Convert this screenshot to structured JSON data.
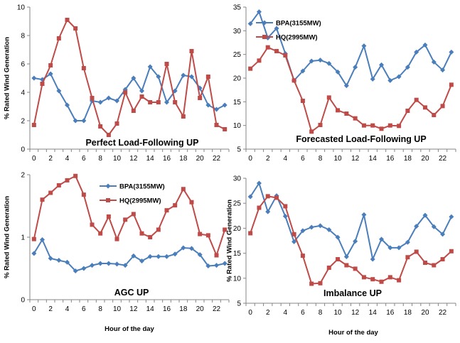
{
  "chart_data": [
    {
      "type": "line",
      "title": "Perfect Load-Following UP",
      "xlabel": "",
      "ylabel": "% Rated Wind Generation",
      "x": [
        0,
        1,
        2,
        3,
        4,
        5,
        6,
        7,
        8,
        9,
        10,
        11,
        12,
        13,
        14,
        15,
        16,
        17,
        18,
        19,
        20,
        21,
        22,
        23
      ],
      "xticks": [
        0,
        2,
        4,
        6,
        8,
        10,
        12,
        14,
        16,
        18,
        20,
        22
      ],
      "ylim": [
        0,
        10
      ],
      "yticks": [
        0,
        2,
        4,
        6,
        8,
        10
      ],
      "legend": [],
      "series": [
        {
          "color": "#4a7ebb",
          "marker": "diamond",
          "values": [
            5.0,
            4.9,
            5.3,
            4.1,
            3.1,
            2.0,
            2.0,
            3.4,
            3.3,
            3.6,
            3.4,
            4.2,
            5.0,
            4.1,
            5.8,
            5.1,
            3.3,
            4.1,
            5.2,
            5.1,
            4.3,
            3.1,
            2.8,
            3.1
          ]
        },
        {
          "color": "#be4b48",
          "marker": "square",
          "values": [
            1.7,
            4.6,
            5.9,
            7.8,
            9.1,
            8.5,
            5.7,
            3.6,
            1.6,
            1.0,
            1.8,
            4.0,
            2.7,
            3.7,
            3.3,
            3.3,
            6.0,
            3.3,
            2.3,
            6.9,
            3.6,
            5.1,
            1.7,
            1.4
          ]
        }
      ]
    },
    {
      "type": "line",
      "title": "Forecasted Load-Following UP",
      "xlabel": "",
      "ylabel": "",
      "x": [
        0,
        1,
        2,
        3,
        4,
        5,
        6,
        7,
        8,
        9,
        10,
        11,
        12,
        13,
        14,
        15,
        16,
        17,
        18,
        19,
        20,
        21,
        22,
        23
      ],
      "xticks": [
        0,
        2,
        4,
        6,
        8,
        10,
        12,
        14,
        16,
        18,
        20,
        22
      ],
      "ylim": [
        5,
        35
      ],
      "yticks": [
        5,
        10,
        15,
        20,
        25,
        30,
        35
      ],
      "legend": [
        "BPA(3155MW)",
        "HQ(2995MW)"
      ],
      "legend_placement": "top-left",
      "series": [
        {
          "name": "BPA(3155MW)",
          "color": "#4a7ebb",
          "marker": "diamond",
          "values": [
            31.5,
            34.0,
            28.5,
            30.5,
            25.2,
            19.5,
            21.5,
            23.6,
            23.8,
            23.1,
            21.3,
            18.4,
            22.3,
            26.8,
            19.8,
            22.8,
            19.5,
            20.3,
            22.3,
            25.5,
            27.0,
            23.4,
            21.7,
            25.5
          ]
        },
        {
          "name": "HQ(2995MW)",
          "color": "#be4b48",
          "marker": "square",
          "values": [
            22.0,
            23.7,
            26.5,
            25.7,
            24.8,
            19.5,
            15.2,
            8.7,
            10.1,
            15.9,
            13.2,
            12.5,
            11.5,
            10.0,
            10.0,
            9.3,
            10.0,
            9.9,
            13.1,
            15.4,
            13.8,
            12.2,
            14.1,
            18.6
          ]
        }
      ]
    },
    {
      "type": "line",
      "title": "AGC UP",
      "xlabel": "Hour of the day",
      "ylabel": "% Rated Wind Generation",
      "x": [
        0,
        1,
        2,
        3,
        4,
        5,
        6,
        7,
        8,
        9,
        10,
        11,
        12,
        13,
        14,
        15,
        16,
        17,
        18,
        19,
        20,
        21,
        22,
        23
      ],
      "xticks": [
        0,
        2,
        4,
        6,
        8,
        10,
        12,
        14,
        16,
        18,
        20,
        22
      ],
      "ylim": [
        0,
        2
      ],
      "yticks": [
        0,
        1,
        2
      ],
      "legend": [
        "BPA(3155MW)",
        "HQ(2995MW)"
      ],
      "legend_placement": "top",
      "series": [
        {
          "name": "BPA(3155MW)",
          "color": "#4a7ebb",
          "marker": "diamond",
          "values": [
            0.74,
            0.96,
            0.66,
            0.63,
            0.6,
            0.46,
            0.5,
            0.55,
            0.58,
            0.58,
            0.57,
            0.55,
            0.7,
            0.62,
            0.69,
            0.69,
            0.69,
            0.73,
            0.83,
            0.82,
            0.72,
            0.54,
            0.55,
            0.58
          ]
        },
        {
          "name": "HQ(2995MW)",
          "color": "#be4b48",
          "marker": "square",
          "values": [
            0.97,
            1.6,
            1.71,
            1.83,
            1.91,
            1.98,
            1.68,
            1.2,
            1.06,
            1.33,
            0.97,
            1.28,
            1.37,
            1.06,
            1.0,
            1.12,
            1.43,
            1.51,
            1.77,
            1.56,
            1.05,
            1.03,
            0.71,
            1.12
          ]
        }
      ]
    },
    {
      "type": "line",
      "title": "Imbalance  UP",
      "xlabel": "Hour of the day",
      "ylabel": "% Rated Wind Generation",
      "x": [
        0,
        1,
        2,
        3,
        4,
        5,
        6,
        7,
        8,
        9,
        10,
        11,
        12,
        13,
        14,
        15,
        16,
        17,
        18,
        19,
        20,
        21,
        22,
        23
      ],
      "xticks": [
        0,
        2,
        4,
        6,
        8,
        10,
        12,
        14,
        16,
        18,
        20,
        22
      ],
      "ylim": [
        5,
        30
      ],
      "yticks": [
        5,
        10,
        15,
        20,
        25,
        30
      ],
      "legend": [],
      "series": [
        {
          "color": "#4a7ebb",
          "marker": "diamond",
          "values": [
            26.3,
            29.0,
            23.3,
            26.5,
            22.4,
            17.3,
            19.5,
            20.2,
            20.5,
            19.7,
            18.2,
            14.3,
            17.4,
            22.7,
            13.8,
            17.8,
            16.1,
            16.1,
            17.2,
            20.4,
            22.6,
            20.3,
            18.8,
            22.3
          ]
        },
        {
          "color": "#be4b48",
          "marker": "square",
          "values": [
            19.0,
            24.1,
            26.4,
            26.1,
            24.4,
            18.8,
            14.5,
            8.9,
            9.0,
            12.1,
            13.8,
            12.6,
            11.9,
            10.2,
            9.8,
            9.3,
            10.2,
            9.6,
            14.2,
            15.3,
            13.1,
            12.6,
            13.8,
            15.4
          ]
        }
      ]
    }
  ]
}
